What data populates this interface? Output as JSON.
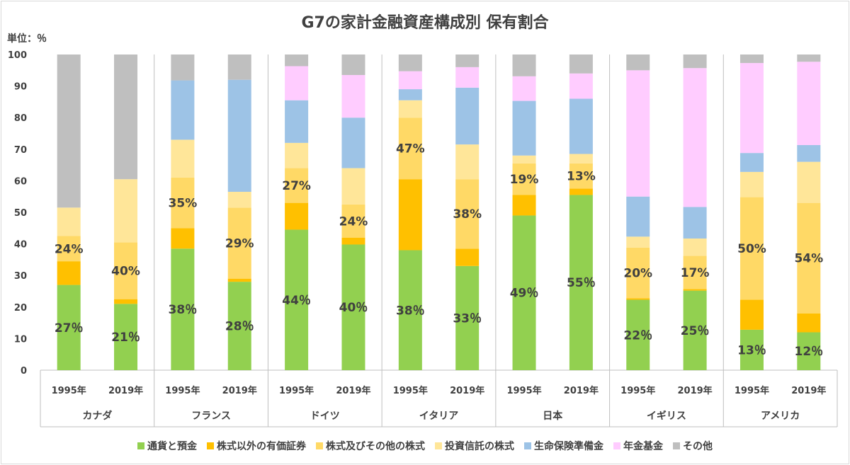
{
  "chart_data": {
    "type": "bar",
    "title": "G7の家計金融資産構成別 保有割合",
    "unit_label": "単位：％",
    "ylim": [
      0,
      100
    ],
    "yticks": [
      "0",
      "10",
      "20",
      "30",
      "40",
      "50",
      "60",
      "70",
      "80",
      "90",
      "100"
    ],
    "grid": false,
    "legend_position": "bottom",
    "countries": [
      "カナダ",
      "フランス",
      "ドイツ",
      "イタリア",
      "日本",
      "イギリス",
      "アメリカ"
    ],
    "years": [
      "1995年",
      "2019年"
    ],
    "categories": [
      "1995年",
      "2019年",
      "1995年",
      "2019年",
      "1995年",
      "2019年",
      "1995年",
      "2019年",
      "1995年",
      "2019年",
      "1995年",
      "2019年",
      "1995年",
      "2019年"
    ],
    "series": [
      {
        "name": "通貨と預金",
        "color": "#92d050",
        "values": [
          27,
          21,
          38.5,
          28,
          44.5,
          39.8,
          38,
          33,
          49,
          55.5,
          22.3,
          25.2,
          12.8,
          12
        ]
      },
      {
        "name": "株式以外の有価証券",
        "color": "#ffc000",
        "values": [
          7.5,
          1.5,
          6.5,
          1,
          8.5,
          2.2,
          22.5,
          5.5,
          6.5,
          2,
          0.5,
          0.5,
          9.5,
          6
        ]
      },
      {
        "name": "株式及びその他の株式",
        "color": "#ffd966",
        "values": [
          8,
          18,
          16,
          22.5,
          11,
          10.5,
          19.5,
          22,
          10,
          8,
          16,
          10.5,
          32.5,
          35
        ]
      },
      {
        "name": "投資信託の株式",
        "color": "#ffe699",
        "values": [
          9,
          20,
          12,
          5,
          8,
          11.5,
          5.5,
          11,
          2.5,
          3,
          3.5,
          5.5,
          8,
          13
        ]
      },
      {
        "name": "生命保険準備金",
        "color": "#9dc3e6",
        "values": [
          0,
          0,
          18.8,
          35.5,
          13.5,
          16,
          3.5,
          18,
          17.3,
          17.5,
          12.7,
          10,
          6,
          5.3
        ]
      },
      {
        "name": "年金基金",
        "color": "#ffccff",
        "values": [
          0,
          0,
          0,
          0,
          10.8,
          13.5,
          5.7,
          6.5,
          7.8,
          8,
          40,
          44,
          28.5,
          26.4
        ]
      },
      {
        "name": "その他",
        "color": "#bfbfbf",
        "values": [
          48.5,
          39.5,
          8.2,
          8,
          3.7,
          6.5,
          5.3,
          4,
          6.9,
          6,
          5,
          4.3,
          2.7,
          2.3
        ]
      }
    ],
    "annotations": {
      "cash_labels": [
        "27％",
        "21％",
        "38％",
        "28％",
        "44％",
        "40％",
        "38％",
        "33％",
        "49％",
        "55％",
        "22％",
        "25％",
        "13％",
        "12％"
      ],
      "equity_labels": [
        "24%",
        "40%",
        "35%",
        "29%",
        "27%",
        "24%",
        "47%",
        "38%",
        "19%",
        "13%",
        "20%",
        "17%",
        "50%",
        "54%"
      ]
    }
  }
}
